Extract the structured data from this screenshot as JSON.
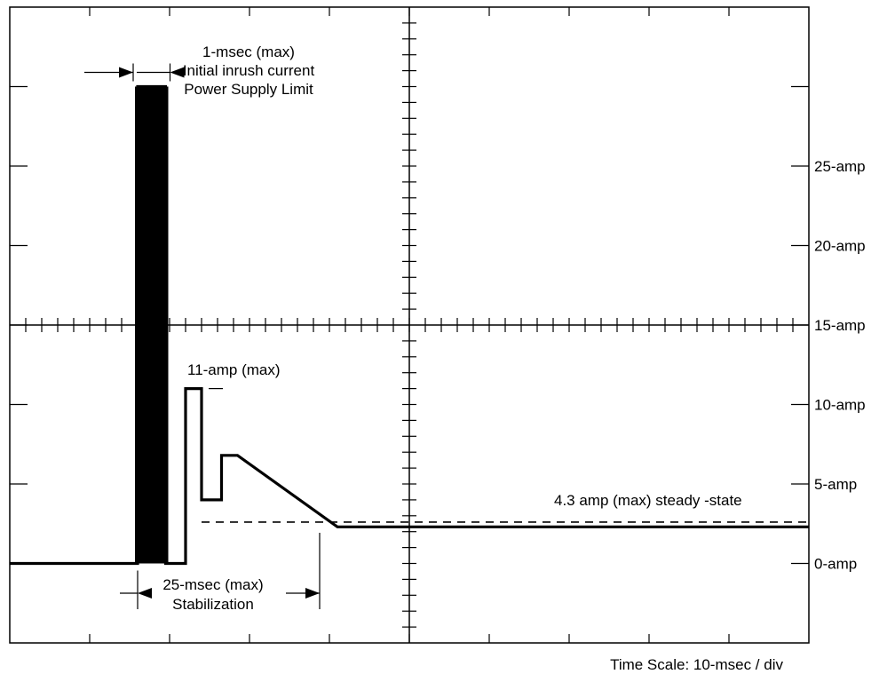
{
  "chart_data": {
    "type": "line",
    "title": "",
    "xlabel": "Time Scale: 10-msec / div",
    "ylabel": "",
    "x_unit": "msec",
    "y_unit": "amp",
    "x_divisions": 10,
    "xlim": [
      0,
      100
    ],
    "ylim": [
      -5,
      35
    ],
    "grid": false,
    "y_tick_labels": [
      {
        "value": 0,
        "text": "0-amp"
      },
      {
        "value": 5,
        "text": "5-amp"
      },
      {
        "value": 10,
        "text": "10-amp"
      },
      {
        "value": 15,
        "text": "15-amp"
      },
      {
        "value": 20,
        "text": "20-amp"
      },
      {
        "value": 25,
        "text": "25-amp"
      }
    ],
    "series": [
      {
        "x": [
          0,
          16,
          16,
          19.5,
          19.5,
          22,
          22,
          24,
          24,
          26.5,
          26.5,
          28.5,
          41,
          100
        ],
        "y": [
          0,
          0,
          30,
          30,
          0,
          0,
          11,
          11,
          4,
          4,
          6.8,
          6.8,
          2.3,
          2.3
        ]
      }
    ],
    "reference_line": {
      "y": 2.6,
      "x_start": 24,
      "style": "dashed"
    },
    "annotations": {
      "inrush_lines": [
        "1-msec (max)",
        "Initial inrush current",
        "Power Supply Limit"
      ],
      "peak": "11-amp (max)",
      "stabilization_lines": [
        "25-msec (max)",
        "Stabilization"
      ],
      "steady_state": "4.3 amp (max) steady -state"
    }
  }
}
